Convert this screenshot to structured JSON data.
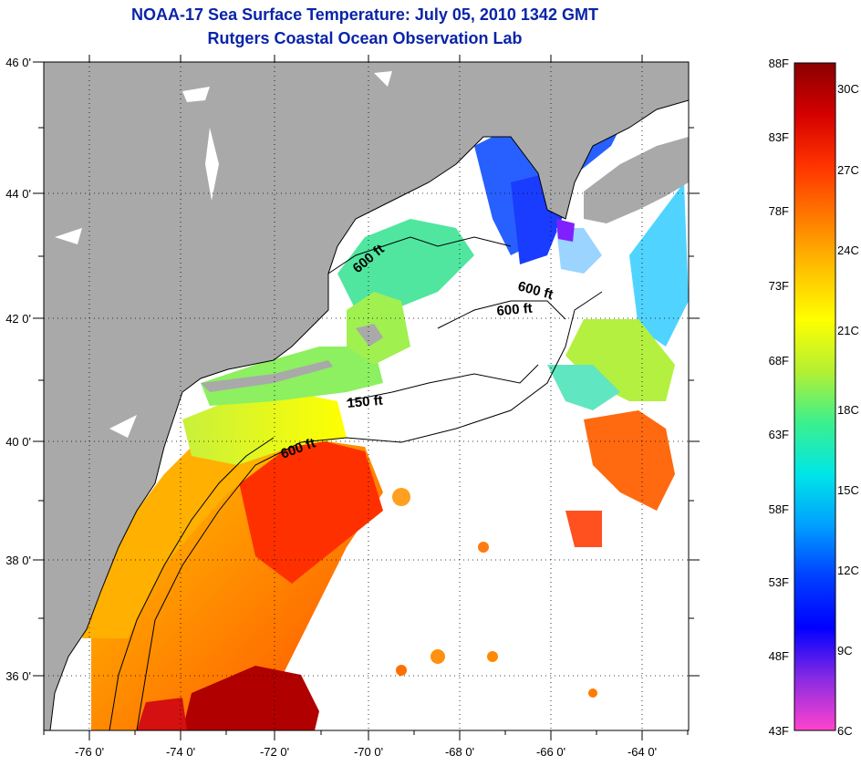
{
  "header": {
    "title": "NOAA-17 Sea Surface Temperature:  July 05, 2010 1342 GMT",
    "subtitle": "Rutgers Coastal Ocean Observation Lab"
  },
  "map": {
    "longitude_labels": [
      "-76 0'",
      "-74 0'",
      "-72 0'",
      "-70 0'",
      "-68 0'",
      "-66 0'",
      "-64 0'"
    ],
    "latitude_labels": [
      "46 0'",
      "44 0'",
      "42 0'",
      "40 0'",
      "38 0'",
      "36 0'"
    ],
    "contour_labels": [
      "600 ft",
      "600 ft",
      "600 ft",
      "150 ft",
      "600 ft"
    ],
    "colors": {
      "land": "#a9a9a9",
      "ocean_no_data": "#ffffff"
    }
  },
  "colorbar": {
    "fahrenheit_labels": [
      "88F",
      "83F",
      "78F",
      "73F",
      "68F",
      "63F",
      "58F",
      "53F",
      "48F",
      "43F"
    ],
    "celsius_labels": [
      "30C",
      "27C",
      "24C",
      "21C",
      "18C",
      "15C",
      "12C",
      "9C",
      "6C"
    ],
    "gradient_stops": [
      "#8b0000",
      "#d40000",
      "#ff3300",
      "#ff7a00",
      "#ffc000",
      "#ffff00",
      "#b4f032",
      "#3cf08c",
      "#00e6e6",
      "#00a0ff",
      "#0040ff",
      "#0000ff",
      "#8a2be2",
      "#ff44cc"
    ]
  }
}
